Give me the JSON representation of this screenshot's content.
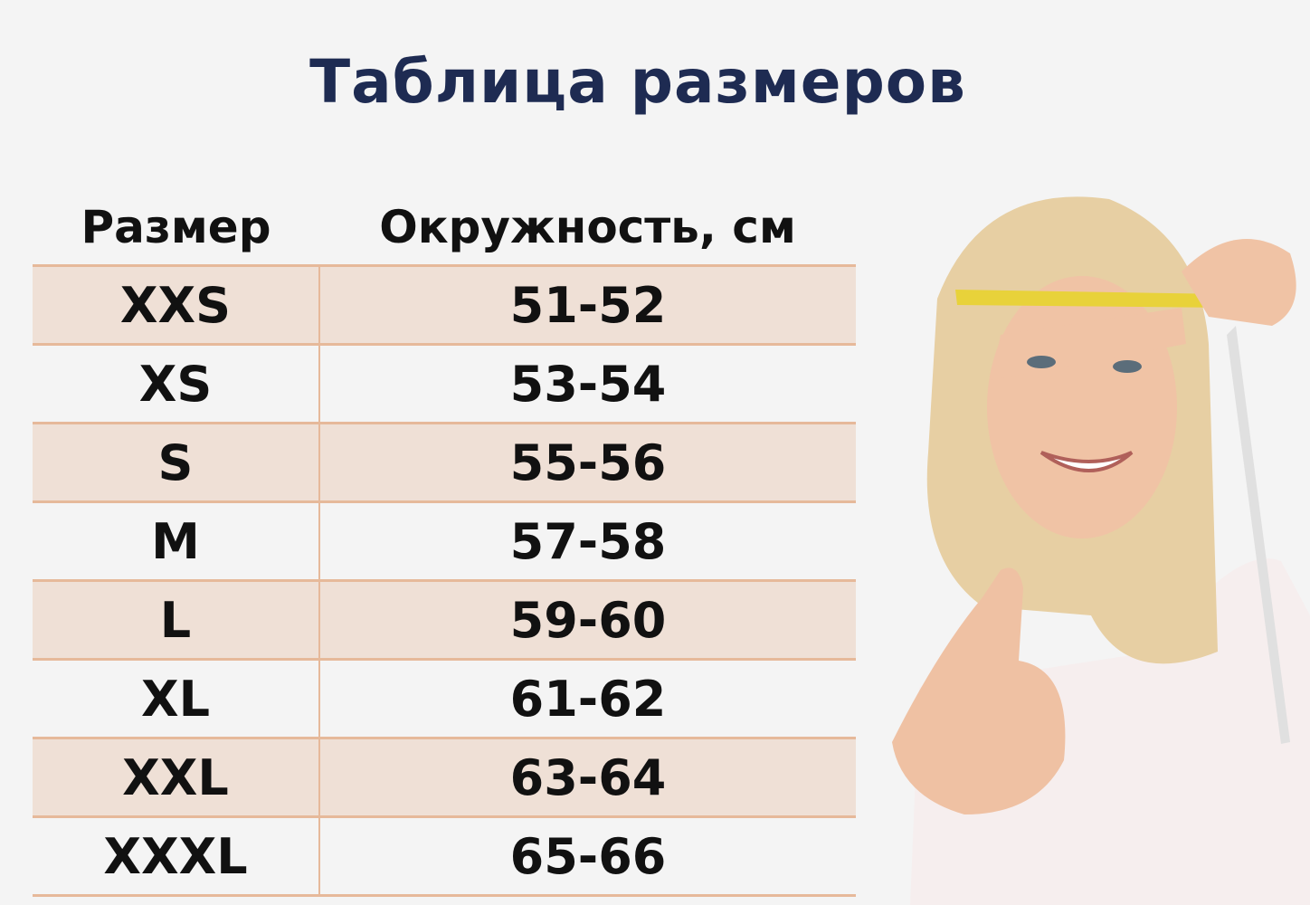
{
  "title": "Таблица размеров",
  "table": {
    "headers": [
      "Размер",
      "Окружность, см"
    ],
    "rows": [
      [
        "XXS",
        "51-52"
      ],
      [
        "XS",
        "53-54"
      ],
      [
        "S",
        "55-56"
      ],
      [
        "M",
        "57-58"
      ],
      [
        "L",
        "59-60"
      ],
      [
        "XL",
        "61-62"
      ],
      [
        "XXL",
        "63-64"
      ],
      [
        "XXXL",
        "65-66"
      ]
    ]
  },
  "colors": {
    "title": "#1e2b52",
    "row_shade": "#efe0d6",
    "border": "#e6b99a"
  }
}
